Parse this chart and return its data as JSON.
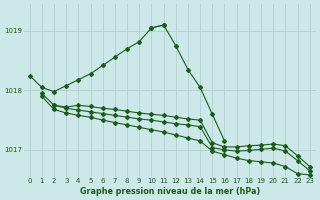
{
  "title": "Graphe pression niveau de la mer (hPa)",
  "background_color": "#cce8e8",
  "grid_color": "#aacccc",
  "line_color": "#1a5c1a",
  "xlim": [
    -0.5,
    23.5
  ],
  "ylim": [
    1016.55,
    1019.45
  ],
  "yticks": [
    1017,
    1018,
    1019
  ],
  "xticks": [
    0,
    1,
    2,
    3,
    4,
    5,
    6,
    7,
    8,
    9,
    10,
    11,
    12,
    13,
    14,
    15,
    16,
    17,
    18,
    19,
    20,
    21,
    22,
    23
  ],
  "series": [
    {
      "x": [
        0,
        1,
        2,
        3,
        4,
        5,
        6,
        7,
        8,
        9,
        10,
        11
      ],
      "y": [
        1018.25,
        1018.05,
        1017.98,
        1018.08,
        1018.18,
        1018.28,
        1018.42,
        1018.56,
        1018.7,
        1018.82,
        1019.05,
        1019.1
      ]
    },
    {
      "x": [
        10,
        11,
        12,
        13,
        14,
        15,
        16
      ],
      "y": [
        1019.05,
        1019.1,
        1018.75,
        1018.35,
        1018.05,
        1017.6,
        1017.15
      ]
    },
    {
      "x": [
        2,
        3,
        4,
        5,
        6,
        7,
        8,
        9,
        10,
        11,
        12,
        13,
        14,
        15,
        16,
        17,
        18,
        19,
        20,
        21,
        22,
        23
      ],
      "y": [
        1017.75,
        1017.72,
        1017.75,
        1017.73,
        1017.7,
        1017.68,
        1017.65,
        1017.62,
        1017.6,
        1017.58,
        1017.55,
        1017.52,
        1017.5,
        1017.12,
        1017.05,
        1017.05,
        1017.07,
        1017.08,
        1017.1,
        1017.07,
        1016.9,
        1016.72
      ]
    },
    {
      "x": [
        1,
        2,
        3,
        4,
        5,
        6,
        7,
        8,
        9,
        10,
        11,
        12,
        13,
        14,
        15,
        16,
        17,
        18,
        19,
        20,
        21,
        22,
        23
      ],
      "y": [
        1017.95,
        1017.75,
        1017.7,
        1017.67,
        1017.64,
        1017.61,
        1017.58,
        1017.55,
        1017.52,
        1017.5,
        1017.47,
        1017.44,
        1017.42,
        1017.39,
        1017.04,
        1017.0,
        1016.98,
        1016.99,
        1017.01,
        1017.03,
        1016.98,
        1016.82,
        1016.65
      ]
    },
    {
      "x": [
        1,
        2,
        3,
        4,
        5,
        6,
        7,
        8,
        9,
        10,
        11,
        12,
        13,
        14,
        15,
        16,
        17,
        18,
        19,
        20,
        21,
        22,
        23
      ],
      "y": [
        1017.9,
        1017.68,
        1017.62,
        1017.58,
        1017.55,
        1017.5,
        1017.46,
        1017.42,
        1017.38,
        1017.34,
        1017.3,
        1017.25,
        1017.2,
        1017.15,
        1016.98,
        1016.92,
        1016.86,
        1016.82,
        1016.8,
        1016.78,
        1016.72,
        1016.6,
        1016.58
      ]
    }
  ]
}
